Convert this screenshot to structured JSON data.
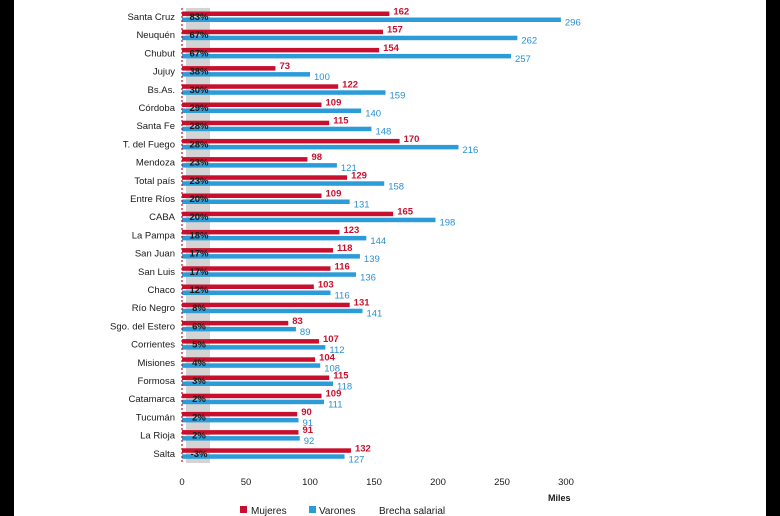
{
  "chart_data": {
    "type": "bar",
    "orientation": "horizontal",
    "categories": [
      "Santa Cruz",
      "Neuquén",
      "Chubut",
      "Jujuy",
      "Bs.As.",
      "Córdoba",
      "Santa Fe",
      "T. del Fuego",
      "Mendoza",
      "Total país",
      "Entre Ríos",
      "CABA",
      "La Pampa",
      "San Juan",
      "San Luis",
      "Chaco",
      "Río Negro",
      "Sgo. del Estero",
      "Corrientes",
      "Misiones",
      "Formosa",
      "Catamarca",
      "Tucumán",
      "La Rioja",
      "Salta"
    ],
    "series": [
      {
        "name": "Mujeres",
        "color": "#c8102e",
        "values": [
          162,
          157,
          154,
          73,
          122,
          109,
          115,
          170,
          98,
          129,
          109,
          165,
          123,
          118,
          116,
          103,
          131,
          83,
          107,
          104,
          115,
          109,
          90,
          91,
          132
        ]
      },
      {
        "name": "Varones",
        "color": "#2b9cd8",
        "values": [
          296,
          262,
          257,
          100,
          159,
          140,
          148,
          216,
          121,
          158,
          131,
          198,
          144,
          139,
          136,
          116,
          141,
          89,
          112,
          108,
          118,
          111,
          91,
          92,
          127
        ]
      }
    ],
    "brecha_salarial": {
      "name": "Brecha salarial",
      "labels": [
        "83%",
        "67%",
        "67%",
        "38%",
        "30%",
        "29%",
        "28%",
        "28%",
        "23%",
        "23%",
        "20%",
        "20%",
        "18%",
        "17%",
        "17%",
        "12%",
        "8%",
        "6%",
        "5%",
        "4%",
        "3%",
        "2%",
        "2%",
        "2%",
        "-3%"
      ]
    },
    "x_ticks": [
      "0",
      "50",
      "100",
      "150",
      "200",
      "250",
      "300"
    ],
    "xlim": [
      0,
      300
    ],
    "xlabel": "Miles",
    "grid": false,
    "legend_placement": "bottom"
  }
}
